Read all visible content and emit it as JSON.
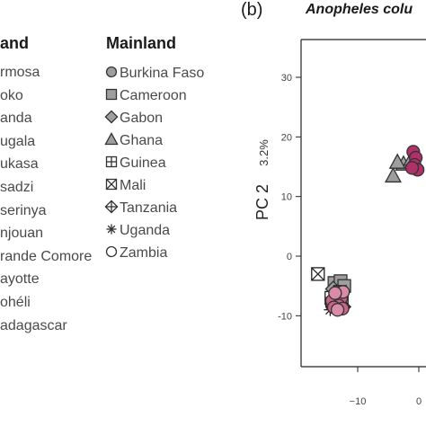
{
  "panel_label": "(b)",
  "legend": {
    "islands_title": "and",
    "islands": [
      "rmosa",
      "oko",
      "anda",
      "ugala",
      "ukasa",
      "sadzi",
      "serinya",
      "njouan",
      "rande Comore",
      "ayotte",
      "ohéli",
      "adagascar"
    ],
    "mainland_title": "Mainland",
    "mainland": [
      {
        "label": "Burkina Faso",
        "marker": "filled-circle"
      },
      {
        "label": "Cameroon",
        "marker": "filled-square"
      },
      {
        "label": "Gabon",
        "marker": "filled-diamond"
      },
      {
        "label": "Ghana",
        "marker": "filled-triangle"
      },
      {
        "label": "Guinea",
        "marker": "boxed-plus"
      },
      {
        "label": "Mali",
        "marker": "boxed-x"
      },
      {
        "label": "Tanzania",
        "marker": "diamond-plus"
      },
      {
        "label": "Uganda",
        "marker": "asterisk"
      },
      {
        "label": "Zambia",
        "marker": "open-circle"
      }
    ]
  },
  "chart_data": {
    "type": "scatter",
    "title": "Anopheles colu",
    "xlabel": "",
    "ylabel": "PC 2",
    "ylabel_pct": "3.2%",
    "xlim": [
      -17,
      1
    ],
    "ylim": [
      -18,
      40
    ],
    "xticks": [
      -10,
      0
    ],
    "yticks": [
      -10,
      0,
      10,
      20,
      30
    ],
    "grid": false,
    "colors": {
      "gray": "#9e9e9e",
      "pink": "#c8638c",
      "magenta": "#b0306a",
      "lightpink": "#d98ba8",
      "dark": "#222222"
    },
    "series": [
      {
        "marker": "boxed-x",
        "color": "dark",
        "points": [
          [
            -16.5,
            -3
          ]
        ]
      },
      {
        "marker": "filled-square",
        "color": "gray",
        "points": [
          [
            -13.8,
            -4.5
          ],
          [
            -12.8,
            -4.2
          ],
          [
            -12.2,
            -5
          ],
          [
            -13.3,
            -6.5
          ],
          [
            -12.6,
            -7.5
          ]
        ]
      },
      {
        "marker": "filled-diamond",
        "color": "gray",
        "points": [
          [
            -14.0,
            -5.5
          ],
          [
            -13.5,
            -8
          ]
        ]
      },
      {
        "marker": "boxed-plus",
        "color": "dark",
        "points": [
          [
            -14.3,
            -7
          ],
          [
            -12.9,
            -6
          ]
        ]
      },
      {
        "marker": "diamond-plus",
        "color": "dark",
        "points": [
          [
            -12.4,
            -8.5
          ]
        ]
      },
      {
        "marker": "asterisk",
        "color": "dark",
        "points": [
          [
            -14.5,
            -9
          ]
        ]
      },
      {
        "marker": "open-circle",
        "color": "dark",
        "points": [
          [
            -14.2,
            -8.2
          ]
        ]
      },
      {
        "marker": "filled-circle",
        "color": "pink",
        "points": [
          [
            -13.0,
            -6.5
          ],
          [
            -13.5,
            -7.3
          ],
          [
            -12.7,
            -7.0
          ],
          [
            -14.2,
            -7.5
          ],
          [
            -13.1,
            -8.3
          ],
          [
            -12.5,
            -8.8
          ],
          [
            -13.9,
            -8.6
          ]
        ]
      },
      {
        "marker": "filled-circle",
        "color": "lightpink",
        "points": [
          [
            -12.4,
            -6.0
          ],
          [
            -13.7,
            -6.2
          ],
          [
            -13.3,
            -9.0
          ]
        ]
      },
      {
        "marker": "filled-triangle",
        "color": "gray",
        "points": [
          [
            -4.2,
            13.5
          ],
          [
            -2.5,
            15.5
          ],
          [
            -3.5,
            15.8
          ],
          [
            -1.2,
            16.3
          ]
        ]
      },
      {
        "marker": "filled-circle",
        "color": "magenta",
        "points": [
          [
            -0.9,
            17.5
          ],
          [
            -0.5,
            16.5
          ],
          [
            -0.7,
            15.3
          ],
          [
            -0.2,
            14.5
          ],
          [
            -1.1,
            14.8
          ]
        ]
      }
    ]
  }
}
